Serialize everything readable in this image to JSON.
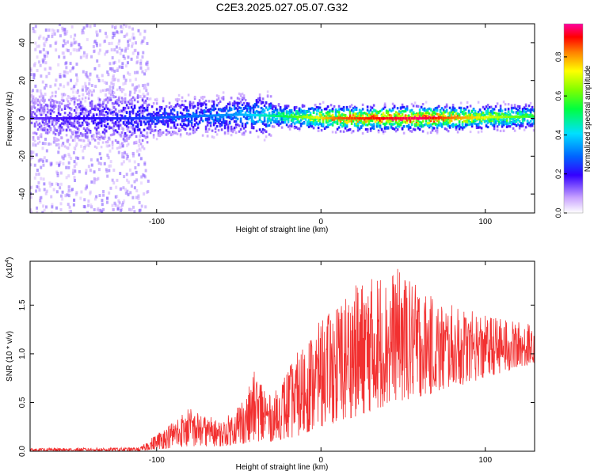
{
  "title": "C2E3.2025.027.05.07.G32",
  "chart_data": [
    {
      "type": "heatmap",
      "xlabel": "Height of straight line (km)",
      "ylabel": "Frequency (Hz)",
      "xlim": [
        -177,
        130
      ],
      "ylim": [
        -50,
        50
      ],
      "xticks": [
        -100,
        0,
        100
      ],
      "yticks": [
        -40,
        -20,
        0,
        20,
        40
      ],
      "colorbar": {
        "label": "Normalized spectral amplitude",
        "range": [
          0.0,
          0.97
        ],
        "ticks": [
          0.0,
          0.2,
          0.4,
          0.6,
          0.8
        ],
        "tick_labels": [
          "0.0",
          "0.2",
          "0.4",
          "0.6",
          "0.8"
        ]
      },
      "ridge": {
        "description_points": [
          {
            "x": -177,
            "y": 0,
            "amp": 0.15
          },
          {
            "x": -110,
            "y": 0,
            "amp": 0.25
          },
          {
            "x": -50,
            "y": 2,
            "amp": 0.35
          },
          {
            "x": -20,
            "y": 1,
            "amp": 0.55
          },
          {
            "x": 10,
            "y": 0,
            "amp": 0.85
          },
          {
            "x": 60,
            "y": 0,
            "amp": 0.95
          },
          {
            "x": 130,
            "y": 1,
            "amp": 0.55
          }
        ]
      },
      "scatter_region": {
        "x_range": [
          -177,
          -105
        ],
        "y_range": [
          -50,
          50
        ],
        "amp": 0.1
      }
    },
    {
      "type": "line",
      "xlabel": "Height of straight line (km)",
      "ylabel": "SNR (10 * v/v)",
      "y_scale_label": "(x10",
      "y_scale_exp": "4",
      "xlim": [
        -177,
        130
      ],
      "ylim": [
        0,
        1.95
      ],
      "xticks": [
        -100,
        0,
        100
      ],
      "yticks": [
        0.0,
        0.5,
        1.0,
        1.5
      ],
      "ytick_labels": [
        "0.0",
        "0.5",
        "1.0",
        "1.5"
      ],
      "color": "#f23030",
      "envelope": [
        {
          "x": -177,
          "lo": 0.0,
          "hi": 0.03
        },
        {
          "x": -110,
          "lo": 0.0,
          "hi": 0.04
        },
        {
          "x": -100,
          "lo": 0.02,
          "hi": 0.18
        },
        {
          "x": -80,
          "lo": 0.05,
          "hi": 0.45
        },
        {
          "x": -60,
          "lo": 0.05,
          "hi": 0.3
        },
        {
          "x": -45,
          "lo": 0.08,
          "hi": 0.6
        },
        {
          "x": -40,
          "lo": 0.1,
          "hi": 0.85
        },
        {
          "x": -30,
          "lo": 0.1,
          "hi": 0.55
        },
        {
          "x": -15,
          "lo": 0.15,
          "hi": 1.0
        },
        {
          "x": 0,
          "lo": 0.25,
          "hi": 1.35
        },
        {
          "x": 20,
          "lo": 0.35,
          "hi": 1.7
        },
        {
          "x": 45,
          "lo": 0.5,
          "hi": 1.9
        },
        {
          "x": 70,
          "lo": 0.6,
          "hi": 1.55
        },
        {
          "x": 100,
          "lo": 0.75,
          "hi": 1.4
        },
        {
          "x": 130,
          "lo": 0.9,
          "hi": 1.3
        }
      ]
    }
  ]
}
